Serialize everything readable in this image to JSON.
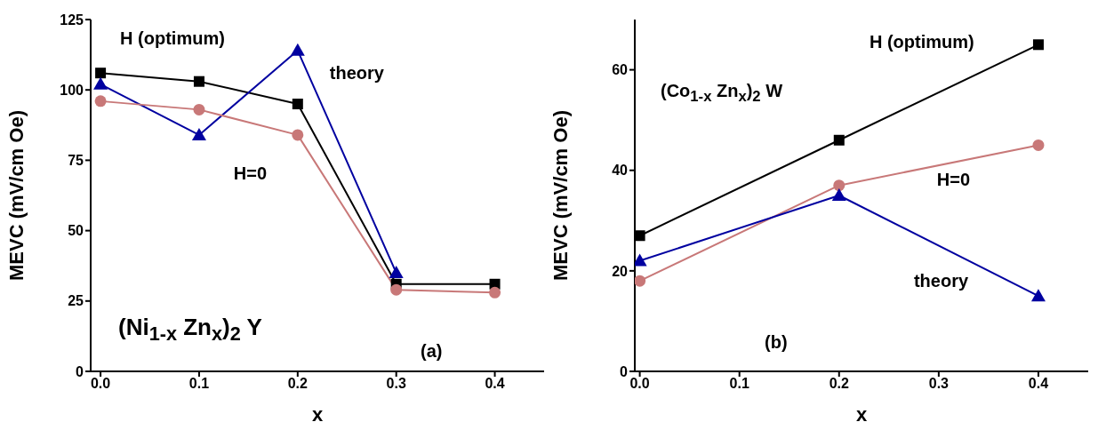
{
  "chart_data": [
    {
      "type": "line",
      "xlabel": "x",
      "ylabel": "MEVC (mV/cm Oe)",
      "x": [
        0,
        0.1,
        0.2,
        0.3,
        0.4
      ],
      "xlim": [
        -0.01,
        0.45
      ],
      "xticks": [
        {
          "value": 0,
          "label": "0.0"
        },
        0.1,
        0.2,
        0.3,
        0.4
      ],
      "ylim": [
        0,
        125
      ],
      "yticks": [
        0,
        25,
        50,
        75,
        100,
        125
      ],
      "grid": false,
      "legend": false,
      "annotations": [
        "(Ni$_{1-x}$ Zn$_{x}$)$_{2}$ Y",
        "(a)"
      ],
      "series": [
        {
          "name": "H (optimum)",
          "color": "#000000",
          "marker": "square",
          "values": [
            106,
            103,
            95,
            31,
            31
          ]
        },
        {
          "name": "theory",
          "color": "#0000a0",
          "marker": "triangle",
          "values": [
            102,
            84,
            114,
            35,
            null
          ]
        },
        {
          "name": "H=0",
          "color": "#c87878",
          "marker": "circle",
          "values": [
            96,
            93,
            84,
            29,
            28
          ]
        }
      ]
    },
    {
      "type": "line",
      "xlabel": "x",
      "ylabel": "MEVC (mV/cm Oe)",
      "x": [
        0,
        0.2,
        0.4
      ],
      "xlim": [
        -0.005,
        0.45
      ],
      "xticks": [
        {
          "value": 0,
          "label": "0.0"
        },
        0.1,
        0.2,
        0.3,
        0.4
      ],
      "ylim": [
        0,
        70
      ],
      "yticks": [
        0,
        20,
        40,
        60
      ],
      "grid": false,
      "legend": false,
      "annotations": [
        "(Co$_{1-x}$ Zn$_{x}$)$_{2}$ W",
        "(b)"
      ],
      "series": [
        {
          "name": "H (optimum)",
          "color": "#000000",
          "marker": "square",
          "values": [
            27,
            46,
            65
          ]
        },
        {
          "name": "H=0",
          "color": "#c87878",
          "marker": "circle",
          "values": [
            18,
            37,
            45
          ]
        },
        {
          "name": "theory",
          "color": "#0000a0",
          "marker": "triangle",
          "values": [
            22,
            35,
            15
          ]
        }
      ]
    }
  ]
}
